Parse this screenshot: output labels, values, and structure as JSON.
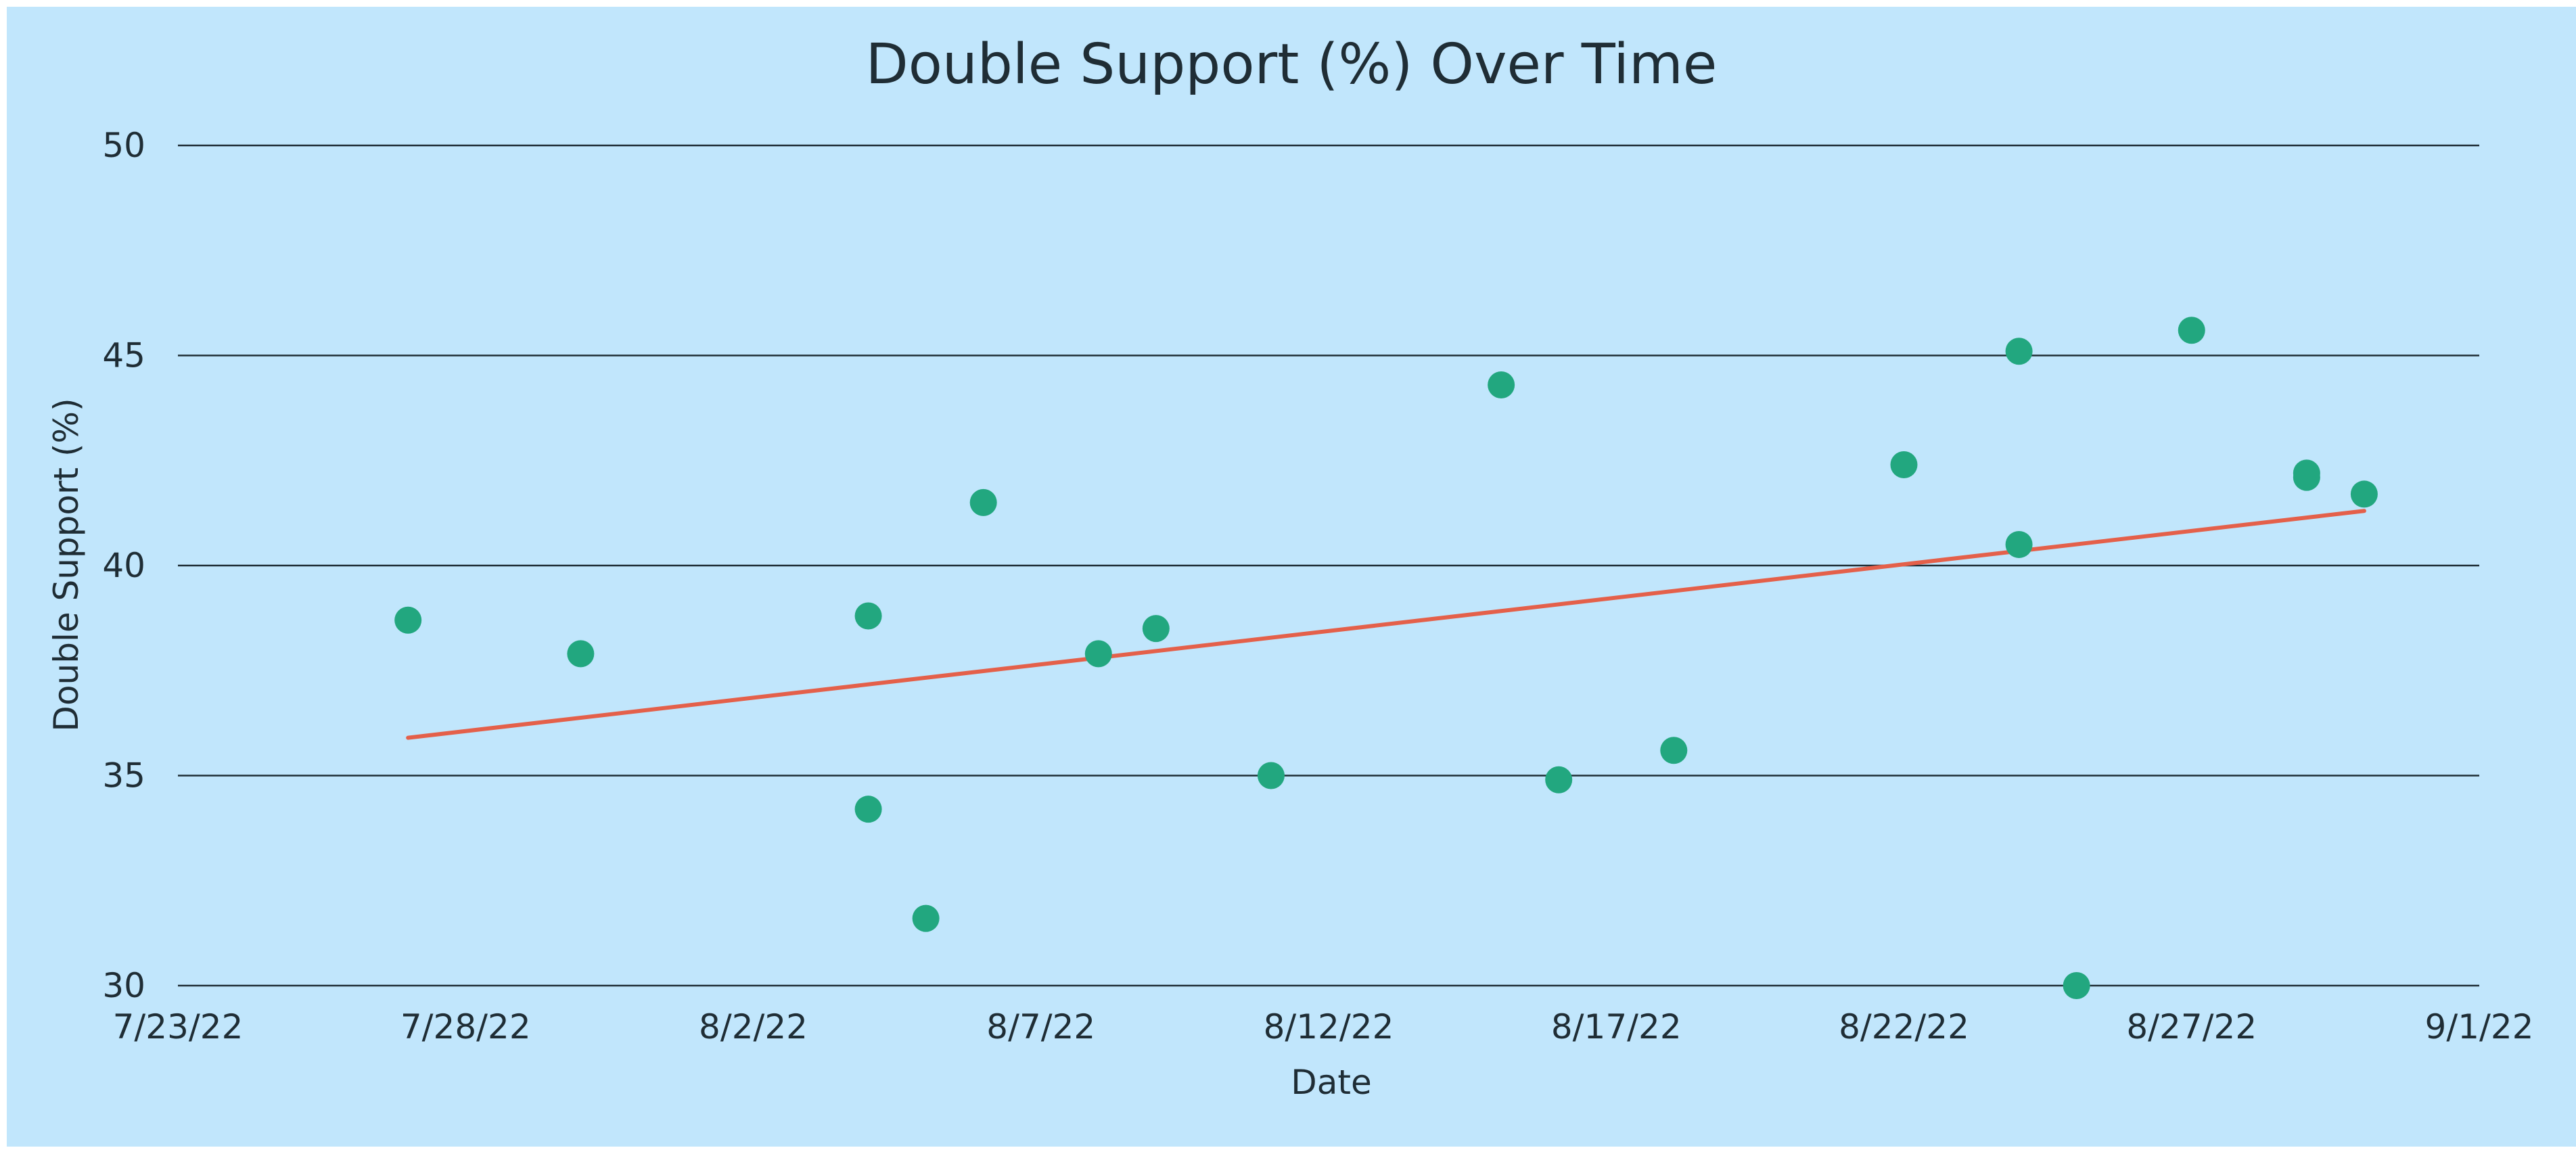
{
  "colors": {
    "background": "#c1e6fc",
    "point": "#22a77f",
    "trendline": "#e4604a",
    "gridline": "#1f2d35",
    "text": "#1f2d35"
  },
  "chart_data": {
    "type": "scatter",
    "title": "Double Support (%) Over Time",
    "xlabel": "Date",
    "ylabel": "Double Support (%)",
    "xlim": [
      "2022-07-23",
      "2022-09-01"
    ],
    "ylim": [
      30,
      50
    ],
    "x_ticks": [
      "7/23/22",
      "7/28/22",
      "8/2/22",
      "8/7/22",
      "8/12/22",
      "8/17/22",
      "8/22/22",
      "8/27/22",
      "9/1/22"
    ],
    "y_ticks": [
      "30",
      "35",
      "40",
      "45",
      "50"
    ],
    "grid": "horizontal",
    "legend": "none",
    "points": [
      {
        "x": "2022-07-27",
        "y": 38.7
      },
      {
        "x": "2022-07-30",
        "y": 37.9
      },
      {
        "x": "2022-08-04",
        "y": 38.8
      },
      {
        "x": "2022-08-04",
        "y": 34.2
      },
      {
        "x": "2022-08-05",
        "y": 31.6
      },
      {
        "x": "2022-08-06",
        "y": 41.5
      },
      {
        "x": "2022-08-08",
        "y": 37.9
      },
      {
        "x": "2022-08-09",
        "y": 38.5
      },
      {
        "x": "2022-08-11",
        "y": 35.0
      },
      {
        "x": "2022-08-15",
        "y": 44.3
      },
      {
        "x": "2022-08-16",
        "y": 34.9
      },
      {
        "x": "2022-08-18",
        "y": 35.6
      },
      {
        "x": "2022-08-22",
        "y": 42.4
      },
      {
        "x": "2022-08-24",
        "y": 45.1
      },
      {
        "x": "2022-08-24",
        "y": 40.5
      },
      {
        "x": "2022-08-25",
        "y": 30.0
      },
      {
        "x": "2022-08-27",
        "y": 45.6
      },
      {
        "x": "2022-08-29",
        "y": 42.2
      },
      {
        "x": "2022-08-29",
        "y": 42.1
      },
      {
        "x": "2022-08-30",
        "y": 41.7
      }
    ],
    "trendline": {
      "type": "linear",
      "x": [
        "2022-07-27",
        "2022-08-30"
      ],
      "y": [
        35.9,
        41.3
      ]
    }
  }
}
